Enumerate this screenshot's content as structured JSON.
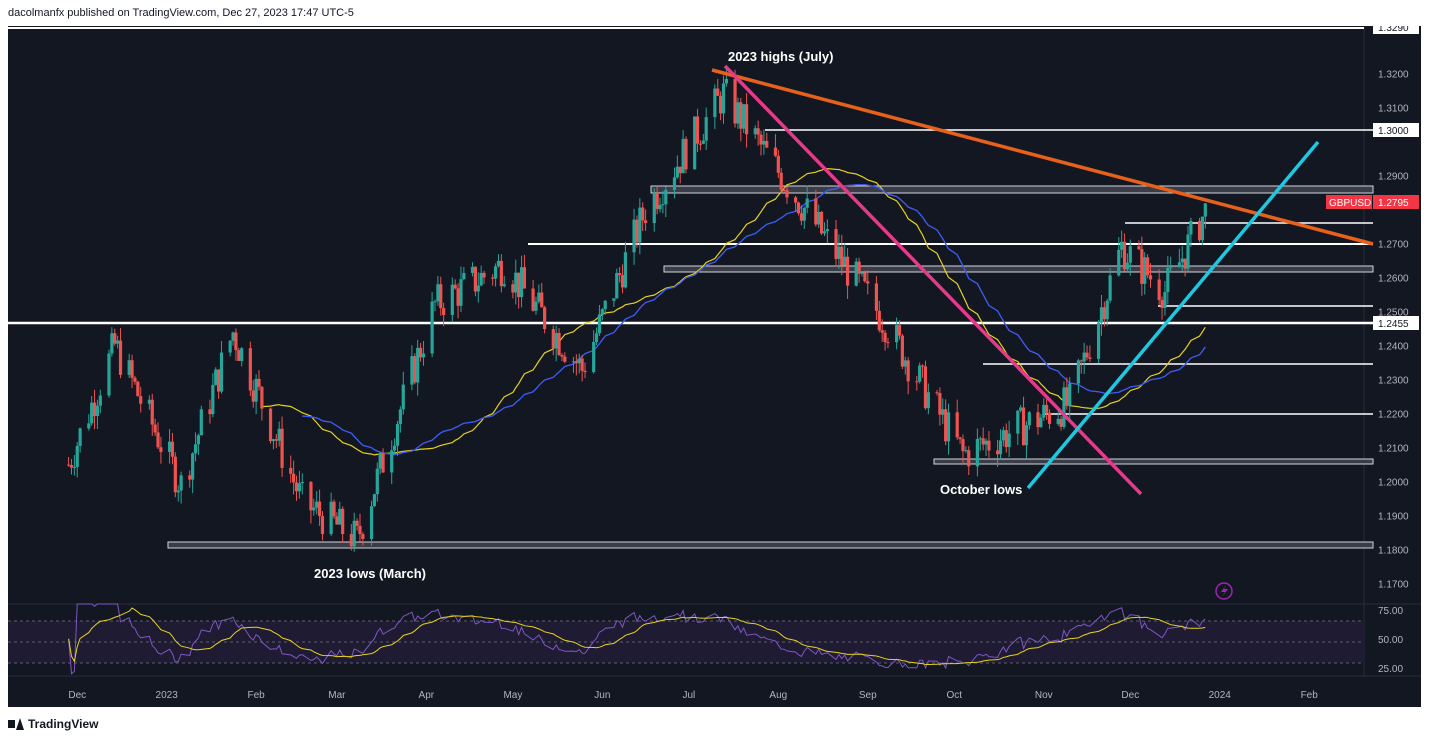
{
  "header": {
    "attribution": "dacolmanfx published on TradingView.com, Dec 27, 2023 17:47 UTC-5"
  },
  "footer": {
    "brand": "TradingView"
  },
  "colors": {
    "background": "#131722",
    "up": "#26a69a",
    "down": "#ef5350",
    "trendline_orange": "#e8611a",
    "trendline_pink": "#e5398a",
    "trendline_cyan": "#1ec8e0",
    "ma_yellow": "#e6d21c",
    "ma_red": "#e91e63",
    "ma_blue": "#2962ff",
    "rsi": "#7e57c2",
    "rsi_signal": "#e6d21c",
    "price_label": "#f23645"
  },
  "chart_data": {
    "type": "candlestick",
    "symbol": "GBPUSD",
    "last_price": "1.2795",
    "ylim": [
      1.164,
      1.334
    ],
    "y_ticks": [
      "1.3200",
      "1.3100",
      "1.2900",
      "1.2700",
      "1.2600",
      "1.2500",
      "1.2400",
      "1.2300",
      "1.2200",
      "1.2100",
      "1.2000",
      "1.1900",
      "1.1800",
      "1.1700"
    ],
    "x_ticks": [
      "Dec",
      "2023",
      "Feb",
      "Mar",
      "Apr",
      "May",
      "Jun",
      "Jul",
      "Aug",
      "Sep",
      "Oct",
      "Nov",
      "Dec",
      "2024",
      "Feb"
    ],
    "price_labels": [
      "1.3290",
      "1.3000",
      "1.2795",
      "1.2455"
    ],
    "horizontal_levels": [
      1.3,
      1.2455,
      1.25,
      1.2335,
      1.2195,
      1.2735,
      1.2675
    ],
    "zones": [
      [
        1.2818,
        1.2838
      ],
      [
        1.2602,
        1.2618
      ],
      [
        1.2058,
        1.2073
      ],
      [
        1.1817,
        1.1835
      ]
    ],
    "annotations": [
      "2023 highs (July)",
      "October lows",
      "2023 lows (March)"
    ],
    "rsi": {
      "ticks": [
        "75.00",
        "50.00",
        "25.00"
      ],
      "ylim": [
        18,
        80
      ]
    },
    "series_approx": [
      {
        "date": "2022-11-28",
        "close": 1.205
      },
      {
        "date": "2022-12-14",
        "close": 1.24
      },
      {
        "date": "2023-01-06",
        "close": 1.199
      },
      {
        "date": "2023-01-24",
        "close": 1.244
      },
      {
        "date": "2023-02-17",
        "close": 1.194
      },
      {
        "date": "2023-03-08",
        "close": 1.183
      },
      {
        "date": "2023-04-04",
        "close": 1.252
      },
      {
        "date": "2023-04-28",
        "close": 1.264
      },
      {
        "date": "2023-05-25",
        "close": 1.233
      },
      {
        "date": "2023-06-16",
        "close": 1.28
      },
      {
        "date": "2023-07-13",
        "close": 1.314
      },
      {
        "date": "2023-08-17",
        "close": 1.272
      },
      {
        "date": "2023-09-07",
        "close": 1.247
      },
      {
        "date": "2023-10-04",
        "close": 1.208
      },
      {
        "date": "2023-11-10",
        "close": 1.223
      },
      {
        "date": "2023-11-28",
        "close": 1.269
      },
      {
        "date": "2023-12-13",
        "close": 1.256
      },
      {
        "date": "2023-12-27",
        "close": 1.2795
      }
    ]
  }
}
